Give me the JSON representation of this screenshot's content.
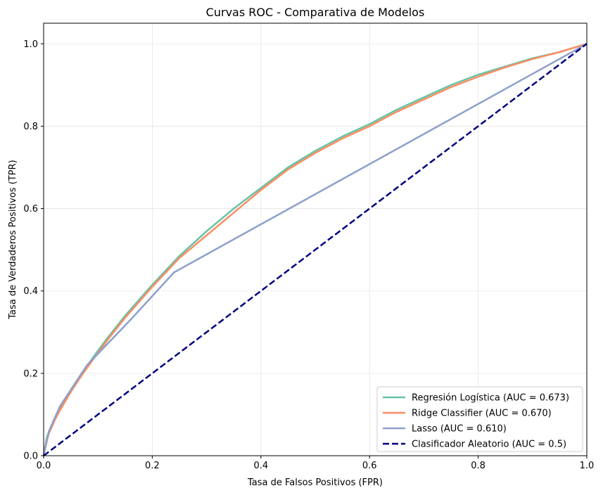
{
  "chart_data": {
    "type": "line",
    "title": "Curvas ROC - Comparativa de Modelos",
    "xlabel": "Tasa de Falsos Positivos (FPR)",
    "ylabel": "Tasa de Verdaderos Positivos (TPR)",
    "xlim": [
      0,
      1
    ],
    "ylim": [
      0,
      1.05
    ],
    "xticks": [
      0,
      0.2,
      0.4,
      0.6,
      0.8,
      1.0
    ],
    "yticks": [
      0,
      0.2,
      0.4,
      0.6,
      0.8,
      1.0
    ],
    "xtick_labels": [
      "0.0",
      "0.2",
      "0.4",
      "0.6",
      "0.8",
      "1.0"
    ],
    "ytick_labels": [
      "0.0",
      "0.2",
      "0.4",
      "0.6",
      "0.8",
      "1.0"
    ],
    "grid": true,
    "legend_position": "bottom-right",
    "series": [
      {
        "name": "Regresión Logística (AUC = 0.673)",
        "color": "#66c2a5",
        "dash": "solid",
        "x": [
          0,
          0.005,
          0.01,
          0.02,
          0.03,
          0.05,
          0.07,
          0.1,
          0.12,
          0.15,
          0.2,
          0.25,
          0.3,
          0.35,
          0.4,
          0.45,
          0.5,
          0.55,
          0.6,
          0.65,
          0.7,
          0.75,
          0.8,
          0.85,
          0.9,
          0.95,
          1.0
        ],
        "y": [
          0,
          0.04,
          0.06,
          0.09,
          0.115,
          0.16,
          0.2,
          0.255,
          0.29,
          0.34,
          0.415,
          0.485,
          0.545,
          0.6,
          0.65,
          0.7,
          0.74,
          0.775,
          0.805,
          0.84,
          0.87,
          0.9,
          0.925,
          0.945,
          0.965,
          0.98,
          1.0
        ]
      },
      {
        "name": "Ridge Classifier (AUC = 0.670)",
        "color": "#fc8d62",
        "dash": "solid",
        "x": [
          0,
          0.005,
          0.01,
          0.02,
          0.03,
          0.05,
          0.07,
          0.1,
          0.12,
          0.15,
          0.2,
          0.25,
          0.3,
          0.35,
          0.4,
          0.45,
          0.5,
          0.55,
          0.6,
          0.65,
          0.7,
          0.75,
          0.8,
          0.85,
          0.9,
          0.95,
          1.0
        ],
        "y": [
          0,
          0.035,
          0.055,
          0.085,
          0.11,
          0.155,
          0.195,
          0.25,
          0.285,
          0.335,
          0.41,
          0.48,
          0.535,
          0.59,
          0.645,
          0.695,
          0.735,
          0.77,
          0.8,
          0.835,
          0.865,
          0.895,
          0.92,
          0.943,
          0.963,
          0.98,
          1.0
        ]
      },
      {
        "name": "Lasso (AUC = 0.610)",
        "color": "#8da0cb",
        "dash": "solid",
        "x": [
          0,
          0.01,
          0.02,
          0.03,
          0.05,
          0.08,
          0.16,
          0.24,
          1.0
        ],
        "y": [
          0,
          0.06,
          0.09,
          0.12,
          0.16,
          0.22,
          0.33,
          0.445,
          1.0
        ]
      },
      {
        "name": "Clasificador Aleatorio (AUC = 0.5)",
        "color": "#000080",
        "dash": "dashed",
        "x": [
          0,
          1
        ],
        "y": [
          0,
          1
        ]
      }
    ]
  }
}
